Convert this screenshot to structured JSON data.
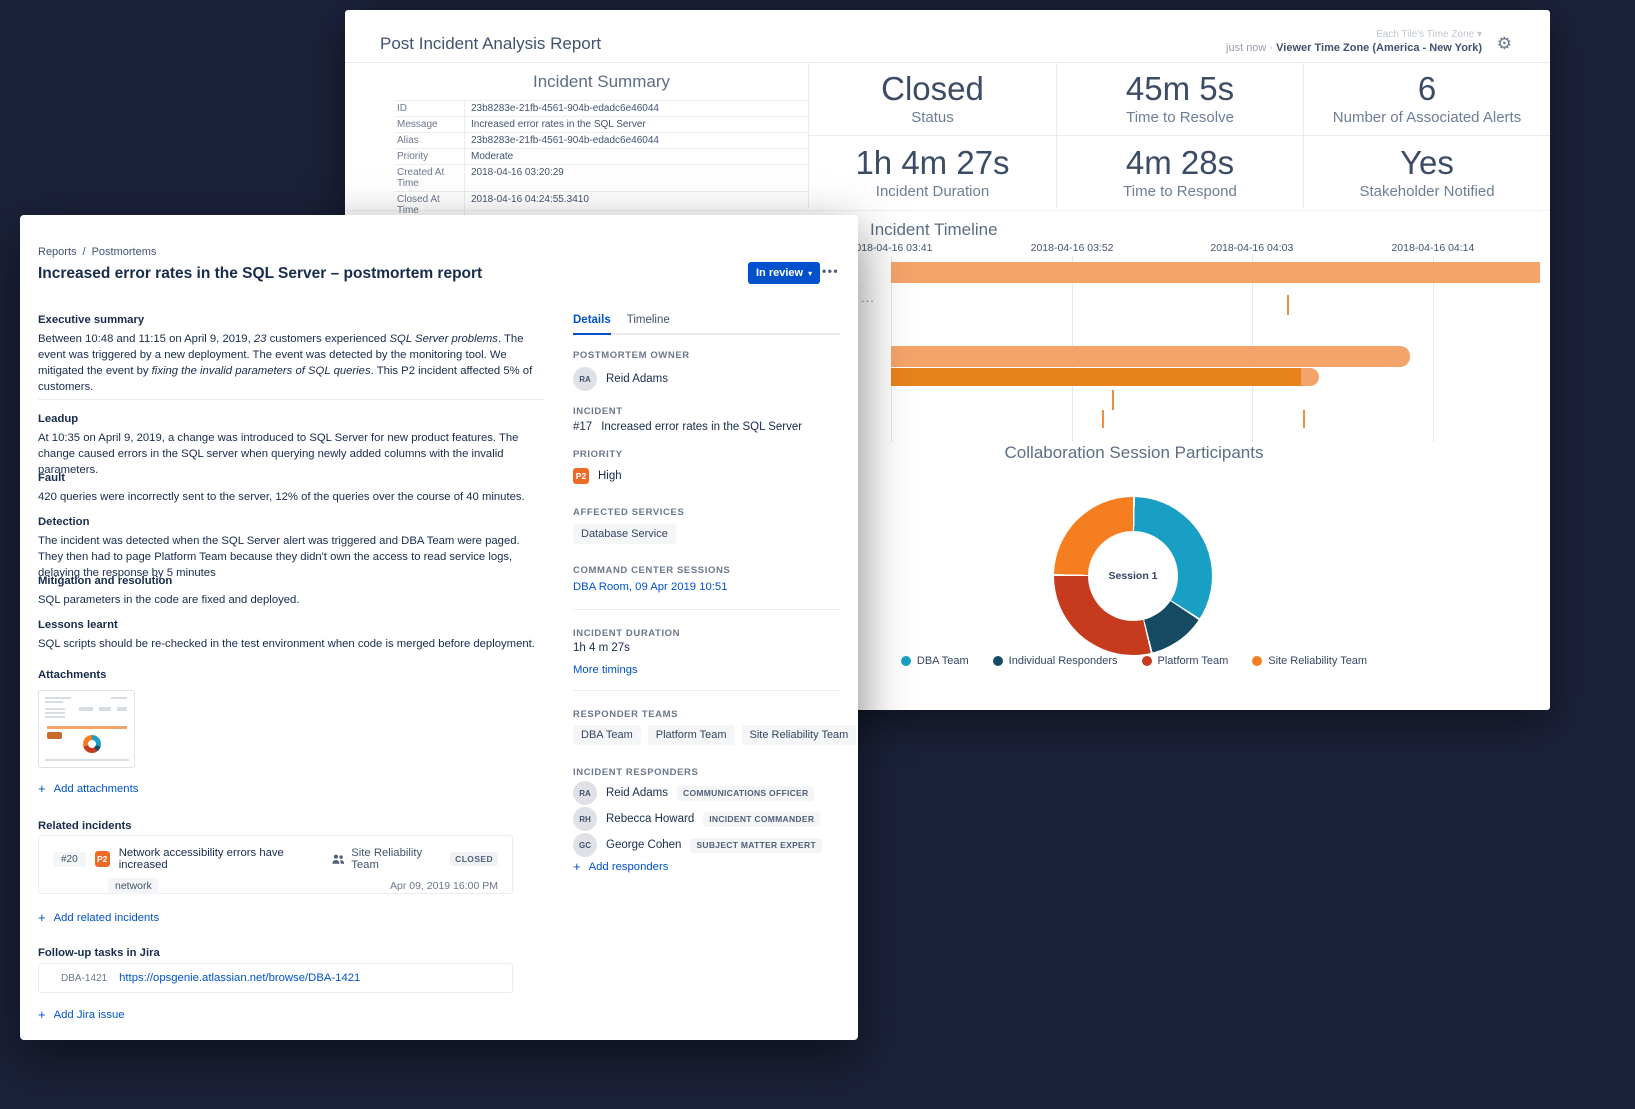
{
  "icons": {
    "plus": "+",
    "gear": "⚙",
    "chevron_down": "▾",
    "dots": "•••",
    "slash": "/",
    "dot_sep": "·",
    "ellipsis": "..."
  },
  "back": {
    "title": "Post Incident Analysis Report",
    "tz_selector": "Each Tile's Time Zone",
    "updated": "just now",
    "viewer_tz": "Viewer Time Zone (America - New York)",
    "summary": {
      "title": "Incident Summary",
      "rows": [
        {
          "label": "ID",
          "value": "23b8283e-21fb-4561-904b-edadc6e46044"
        },
        {
          "label": "Message",
          "value": "Increased error rates in the SQL Server"
        },
        {
          "label": "Alias",
          "value": "23b8283e-21fb-4561-904b-edadc6e46044"
        },
        {
          "label": "Priority",
          "value": "Moderate"
        },
        {
          "label": "Created At Time",
          "value": "2018-04-16 03:20:29"
        },
        {
          "label": "Closed At Time",
          "value": "2018-04-16 04:24:55.3410"
        }
      ]
    },
    "stats": [
      {
        "value": "Closed",
        "label": "Status"
      },
      {
        "value": "45m 5s",
        "label": "Time to Resolve"
      },
      {
        "value": "6",
        "label": "Number of Associated Alerts"
      },
      {
        "value": "1h 4m 27s",
        "label": "Incident Duration"
      },
      {
        "value": "4m 28s",
        "label": "Time to Respond"
      },
      {
        "value": "Yes",
        "label": "Stakeholder Notified"
      }
    ],
    "timeline_title": "Incident Timeline",
    "donut_title": "Collaboration Session Participants",
    "donut_center": "Session 1"
  },
  "chart_data": [
    {
      "type": "bar",
      "title": "Incident Timeline",
      "x_tick_labels": [
        "2018-04-16 03:41",
        "2018-04-16 03:52",
        "2018-04-16 04:03",
        "2018-04-16 04:14"
      ],
      "x_tick_interval_minutes": 11,
      "gridlines": [
        0,
        0.279,
        0.556,
        0.835
      ],
      "colors": {
        "light": "#F4A469",
        "dark": "#E8821A",
        "tick": "#EF8E3F"
      },
      "bars": [
        {
          "row": 1,
          "start": 0,
          "end": 1.0,
          "shade": "light"
        },
        {
          "row": 2,
          "start": 0,
          "end": 0.8,
          "shade": "light",
          "rounded": true
        },
        {
          "row": 3,
          "start": 0,
          "end": 0.632,
          "shade": "dark",
          "cap_end": 0.659
        }
      ],
      "ticks": [
        {
          "x": 0.61,
          "row": 1
        },
        {
          "x": 0.34,
          "row": 2
        },
        {
          "x": 0.325,
          "row": 3
        },
        {
          "x": 0.635,
          "row": 3
        }
      ]
    },
    {
      "type": "pie",
      "title": "Collaboration Session Participants",
      "center_label": "Session 1",
      "legend_position": "bottom",
      "slices": [
        {
          "label": "DBA Team",
          "value_pct": 34,
          "color": "#1A9FC4"
        },
        {
          "label": "Individual Responders",
          "value_pct": 12,
          "color": "#164A63"
        },
        {
          "label": "Platform Team",
          "value_pct": 29,
          "color": "#C63B1E"
        },
        {
          "label": "Site Reliability Team",
          "value_pct": 25,
          "color": "#F47E20"
        }
      ]
    }
  ],
  "front": {
    "breadcrumb": {
      "first": "Reports",
      "second": "Postmortems"
    },
    "title": "Increased error rates in the SQL Server – postmortem report",
    "status_button": "In review",
    "sections": {
      "exec": {
        "heading": "Executive summary",
        "p1": "Between 10:48 and 11:15 on April 9, 2019, ",
        "i1": "23",
        "p2": " customers experienced ",
        "i2": "SQL Server problems",
        "p3": ". The event was triggered by a new deployment. The event was detected by the monitoring tool. We mitigated the event by ",
        "i3": "fixing the invalid parameters of SQL queries",
        "p4": ". This P2 incident affected 5% of customers."
      },
      "leadup": {
        "heading": "Leadup",
        "text": "At 10:35 on April 9, 2019, a change was introduced to SQL Server for new product features. The change caused errors in the SQL server when querying newly added columns with the invalid parameters."
      },
      "fault": {
        "heading": "Fault",
        "text": "420 queries were incorrectly sent to the server, 12% of the queries over the course of 40 minutes."
      },
      "detection": {
        "heading": "Detection",
        "text": "The incident was detected when the SQL Server alert was triggered and DBA Team were paged. They then had to page Platform Team because they didn't own the access to read service logs, delaying the response by 5 minutes"
      },
      "mitigation": {
        "heading": "Mitigation and resolution",
        "text": "SQL parameters in the code are fixed and deployed."
      },
      "lessons": {
        "heading": "Lessons learnt",
        "text": "SQL scripts should be re-checked in the test environment when code is merged before deployment."
      }
    },
    "attachments": {
      "heading": "Attachments",
      "add": "Add attachments"
    },
    "related": {
      "heading": "Related incidents",
      "id": "#20",
      "priority": "P2",
      "title": "Network accessibility errors have increased",
      "tag": "network",
      "team": "Site Reliability Team",
      "status": "CLOSED",
      "date": "Apr 09, 2019 16:00 PM",
      "add": "Add related incidents"
    },
    "jira": {
      "heading": "Follow-up tasks in Jira",
      "key": "DBA-1421",
      "url": "https://opsgenie.atlassian.net/browse/DBA-1421",
      "add": "Add Jira issue"
    },
    "panel": {
      "tabs": [
        {
          "label": "Details"
        },
        {
          "label": "Timeline"
        }
      ],
      "owner_label": "POSTMORTEM OWNER",
      "owner_initials": "RA",
      "owner_name": "Reid Adams",
      "incident_label": "INCIDENT",
      "incident_id": "#17",
      "incident_title": "Increased error rates in the SQL Server",
      "priority_label": "PRIORITY",
      "priority_badge": "P2",
      "priority_value": "High",
      "services_label": "AFFECTED SERVICES",
      "service": "Database Service",
      "sessions_label": "COMMAND CENTER SESSIONS",
      "session_link": "DBA Room, 09 Apr 2019 10:51",
      "duration_label": "INCIDENT DURATION",
      "duration": "1h 4 m 27s",
      "more_timings": "More timings",
      "teams_label": "RESPONDER TEAMS",
      "teams": [
        "DBA Team",
        "Platform Team",
        "Site Reliability Team"
      ],
      "responders_label": "INCIDENT RESPONDERS",
      "responders": [
        {
          "initials": "RA",
          "name": "Reid Adams",
          "role": "COMMUNICATIONS OFFICER"
        },
        {
          "initials": "RH",
          "name": "Rebecca Howard",
          "role": "INCIDENT COMMANDER"
        },
        {
          "initials": "GC",
          "name": "George Cohen",
          "role": "SUBJECT MATTER EXPERT"
        }
      ],
      "add": "Add responders"
    }
  }
}
